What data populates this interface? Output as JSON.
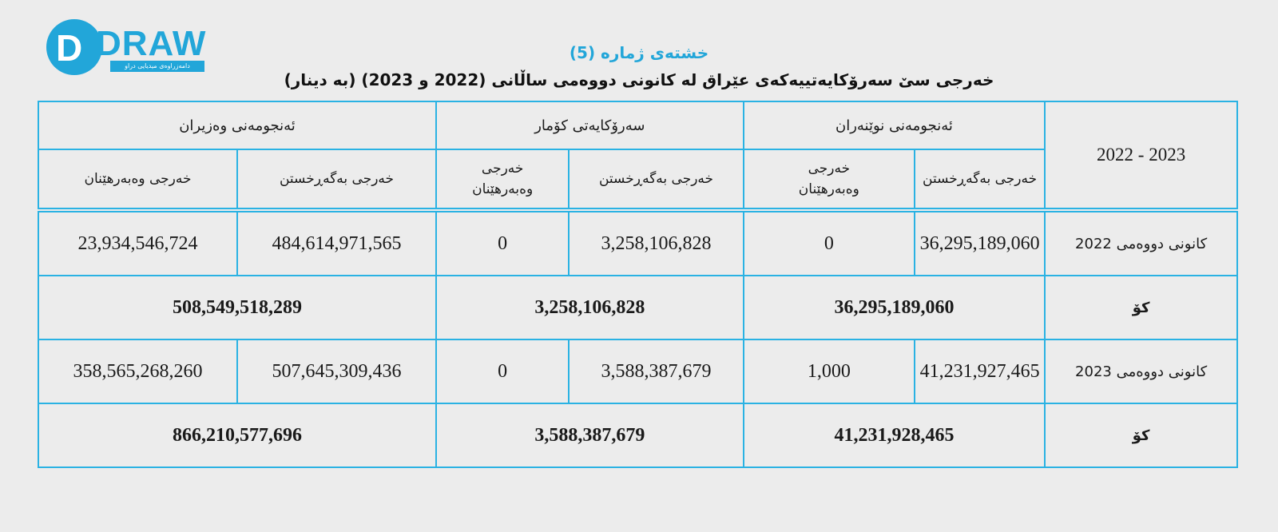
{
  "logo": {
    "word": "DRAW",
    "letter": "D",
    "tagline": "دامەزراوەی میدیایی دراو"
  },
  "caption": {
    "table_number": "خشتەی ژمارە (5)",
    "title": "خەرجی سێ سەرۆکایەتییەکەی عێراق لە کانونی دووەمی ساڵانی (2022 و 2023) (بە دینار)"
  },
  "headers": {
    "year_range": "2023 - 2022",
    "groups": [
      "ئەنجومەنی نوێنەران",
      "سەرۆکایەتی کۆمار",
      "ئەنجومەنی وەزیران"
    ],
    "sub": {
      "operating": "خەرجی بەگەڕخستن",
      "investment_line1": "خەرجی",
      "investment_line2": "وەبەرهێنان",
      "investment": "خەرجی وەبەرهێنان"
    }
  },
  "rows": [
    {
      "label": "کانونی دووەمی 2022",
      "values": [
        "36,295,189,060",
        "0",
        "3,258,106,828",
        "0",
        "484,614,971,565",
        "23,934,546,724"
      ],
      "total_label": "کۆ",
      "totals": [
        "36,295,189,060",
        "3,258,106,828",
        "508,549,518,289"
      ]
    },
    {
      "label": "کانونی دووەمی 2023",
      "values": [
        "41,231,927,465",
        "1,000",
        "3,588,387,679",
        "0",
        "507,645,309,436",
        "358,565,268,260"
      ],
      "total_label": "کۆ",
      "totals": [
        "41,231,928,465",
        "3,588,387,679",
        "866,210,577,696"
      ]
    }
  ],
  "colors": {
    "accent": "#22a6d9",
    "border": "#2ab2e3",
    "background": "#ececec"
  }
}
